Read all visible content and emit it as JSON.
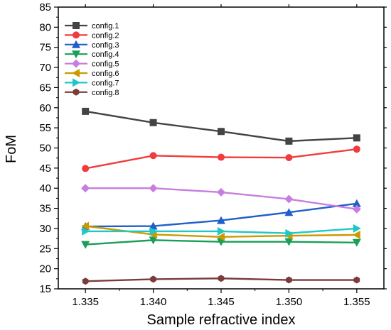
{
  "chart_data": {
    "type": "line",
    "title": "",
    "xlabel": "Sample refractive index",
    "ylabel": "FoM",
    "x": [
      1.335,
      1.34,
      1.345,
      1.35,
      1.355
    ],
    "x_tick_labels": [
      "1.335",
      "1.340",
      "1.345",
      "1.350",
      "1.355"
    ],
    "xlim": [
      1.333,
      1.357
    ],
    "ylim": [
      15,
      85
    ],
    "y_ticks": [
      15,
      20,
      25,
      30,
      35,
      40,
      45,
      50,
      55,
      60,
      65,
      70,
      75,
      80,
      85
    ],
    "grid": false,
    "legend_position": "top-left",
    "series": [
      {
        "name": "config.1",
        "color": "#444444",
        "marker": "square",
        "values": [
          59.1,
          56.3,
          54.1,
          51.7,
          52.5
        ]
      },
      {
        "name": "config.2",
        "color": "#f03c3c",
        "marker": "circle",
        "values": [
          44.9,
          48.1,
          47.7,
          47.6,
          49.7
        ]
      },
      {
        "name": "config.3",
        "color": "#1f5fcc",
        "marker": "triangle-up",
        "values": [
          30.5,
          30.6,
          32.0,
          34.0,
          36.2
        ]
      },
      {
        "name": "config.4",
        "color": "#1a9e58",
        "marker": "triangle-down",
        "values": [
          26.0,
          27.1,
          26.7,
          26.7,
          26.5
        ]
      },
      {
        "name": "config.5",
        "color": "#c77ee0",
        "marker": "diamond",
        "values": [
          40.0,
          40.0,
          39.0,
          37.3,
          34.8
        ]
      },
      {
        "name": "config.6",
        "color": "#cc9a00",
        "marker": "triangle-left",
        "values": [
          30.6,
          28.5,
          27.9,
          28.2,
          28.4
        ]
      },
      {
        "name": "config.7",
        "color": "#1fc7c7",
        "marker": "triangle-right",
        "values": [
          29.3,
          29.3,
          29.3,
          28.8,
          30.0
        ]
      },
      {
        "name": "config.8",
        "color": "#7a3b3b",
        "marker": "hexagon",
        "values": [
          16.9,
          17.4,
          17.6,
          17.2,
          17.2
        ]
      }
    ]
  }
}
